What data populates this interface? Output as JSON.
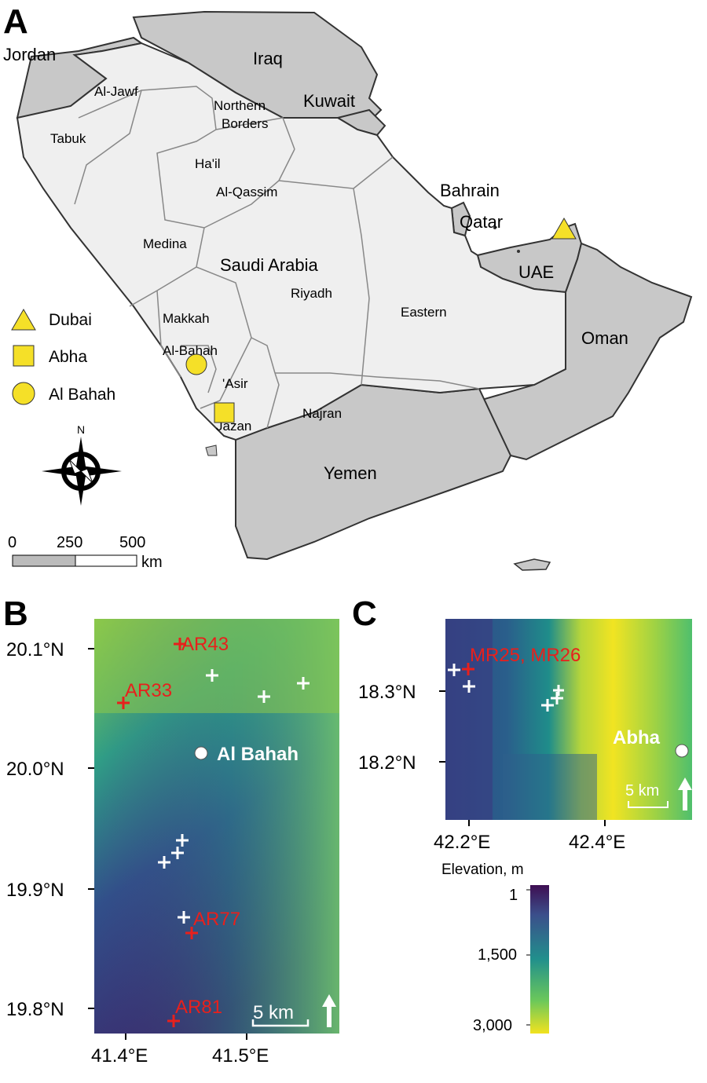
{
  "panels": {
    "a": "A",
    "b": "B",
    "c": "C"
  },
  "map_a": {
    "countries": [
      "Jordan",
      "Iraq",
      "Kuwait",
      "Bahrain",
      "Qatar",
      "UAE",
      "Oman",
      "Yemen",
      "Saudi Arabia"
    ],
    "regions": [
      "Al-Jawf",
      "Northern",
      "Borders",
      "Tabuk",
      "Ha'il",
      "Al-Qassim",
      "Medina",
      "Riyadh",
      "Eastern",
      "Makkah",
      "Al-Bahah",
      "'Asir",
      "Jazan",
      "Najran"
    ],
    "legend": [
      {
        "label": "Dubai",
        "shape": "triangle"
      },
      {
        "label": "Abha",
        "shape": "square"
      },
      {
        "label": "Al Bahah",
        "shape": "circle"
      }
    ],
    "marker_color": "#f5e028",
    "north": "N",
    "scale": {
      "ticks": [
        "0",
        "250",
        "500"
      ],
      "unit": "km"
    }
  },
  "map_b": {
    "lat_ticks": [
      "20.1°N",
      "20.0°N",
      "19.9°N",
      "19.8°N"
    ],
    "lon_ticks": [
      "41.4°E",
      "41.5°E"
    ],
    "site_labels": [
      "AR43",
      "AR33",
      "AR77",
      "AR81"
    ],
    "city": "Al Bahah",
    "scale": "5 km"
  },
  "map_c": {
    "lat_ticks": [
      "18.3°N",
      "18.2°N"
    ],
    "lon_ticks": [
      "42.2°E",
      "42.4°E"
    ],
    "site_label": "MR25, MR26",
    "city": "Abha",
    "scale": "5 km"
  },
  "elevation_legend": {
    "title": "Elevation, m",
    "ticks": [
      "1",
      "1,500",
      "3,000"
    ],
    "colors": [
      "#440154",
      "#3b528b",
      "#21908c",
      "#5dc863",
      "#fde725"
    ]
  }
}
